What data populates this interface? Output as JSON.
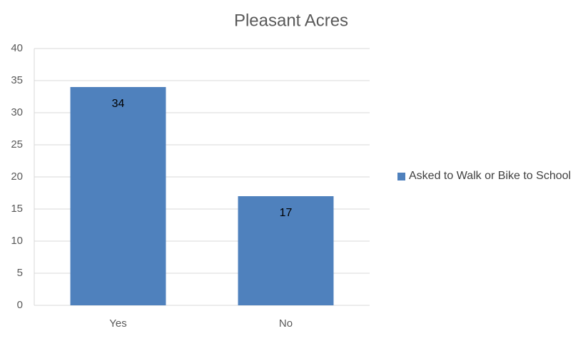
{
  "chart_data": {
    "type": "bar",
    "title": "Pleasant Acres",
    "categories": [
      "Yes",
      "No"
    ],
    "series": [
      {
        "name": "Asked to Walk or Bike to School",
        "color": "#4f81bd",
        "values": [
          34,
          17
        ]
      }
    ],
    "ylim": [
      0,
      40
    ],
    "yticks": [
      0,
      5,
      10,
      15,
      20,
      25,
      30,
      35,
      40
    ],
    "grid": true,
    "legend": "right"
  }
}
